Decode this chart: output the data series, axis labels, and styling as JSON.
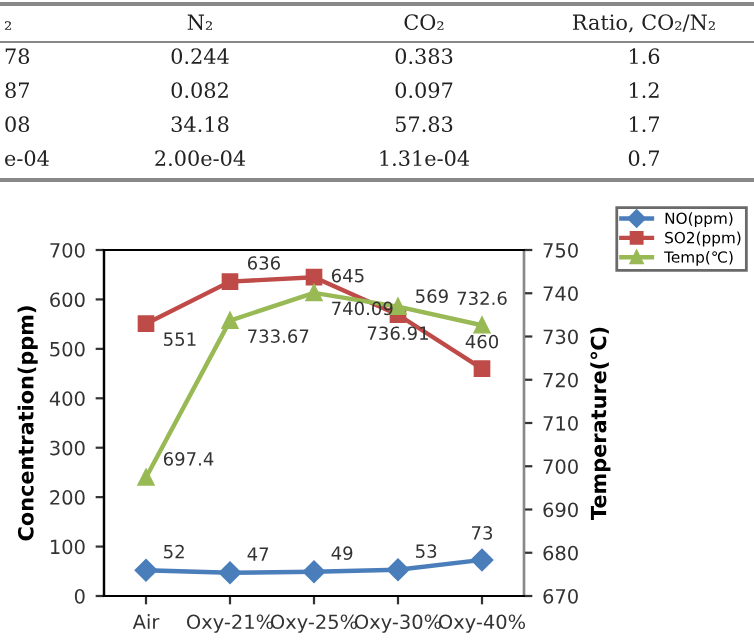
{
  "chart_data": [
    {
      "type": "other",
      "annotations": [
        "₂",
        "N₂",
        "CO₂",
        "Ratio, CO₂/N₂",
        "78",
        "0.244",
        "0.383",
        "1.6",
        "87",
        "0.082",
        "0.097",
        "1.2",
        "08",
        "34.18",
        "57.83",
        "1.7",
        "e-04",
        "2.00e-04",
        "1.31e-04",
        "0.7"
      ]
    },
    {
      "type": "line",
      "categories": [
        "Air",
        "Oxy-21%",
        "Oxy-25%",
        "Oxy-30%",
        "Oxy-40%"
      ],
      "ylabel": "Concentration(ppm)",
      "y2label": "Temperature(℃)",
      "ylim": [
        0,
        700
      ],
      "yticks": [
        0,
        100,
        200,
        300,
        400,
        500,
        600,
        700
      ],
      "y2lim": [
        670,
        750
      ],
      "y2ticks": [
        670,
        680,
        690,
        700,
        710,
        720,
        730,
        740,
        750
      ],
      "grid": false,
      "legend": "right",
      "data_labels": true,
      "series": [
        {
          "name": "NO(ppm)",
          "color": "#4a7ebb",
          "marker": "diamond",
          "values": [
            52,
            47,
            49,
            53,
            73
          ]
        },
        {
          "name": "SO2(ppm)",
          "color": "#be4b48",
          "marker": "square",
          "values": [
            551,
            636,
            645,
            569,
            460
          ]
        },
        {
          "name": "Temp(℃)",
          "color": "#98b954",
          "marker": "triangle",
          "axis": "y2",
          "values": [
            697.4,
            733.67,
            740.09,
            736.91,
            732.6
          ]
        }
      ]
    }
  ]
}
